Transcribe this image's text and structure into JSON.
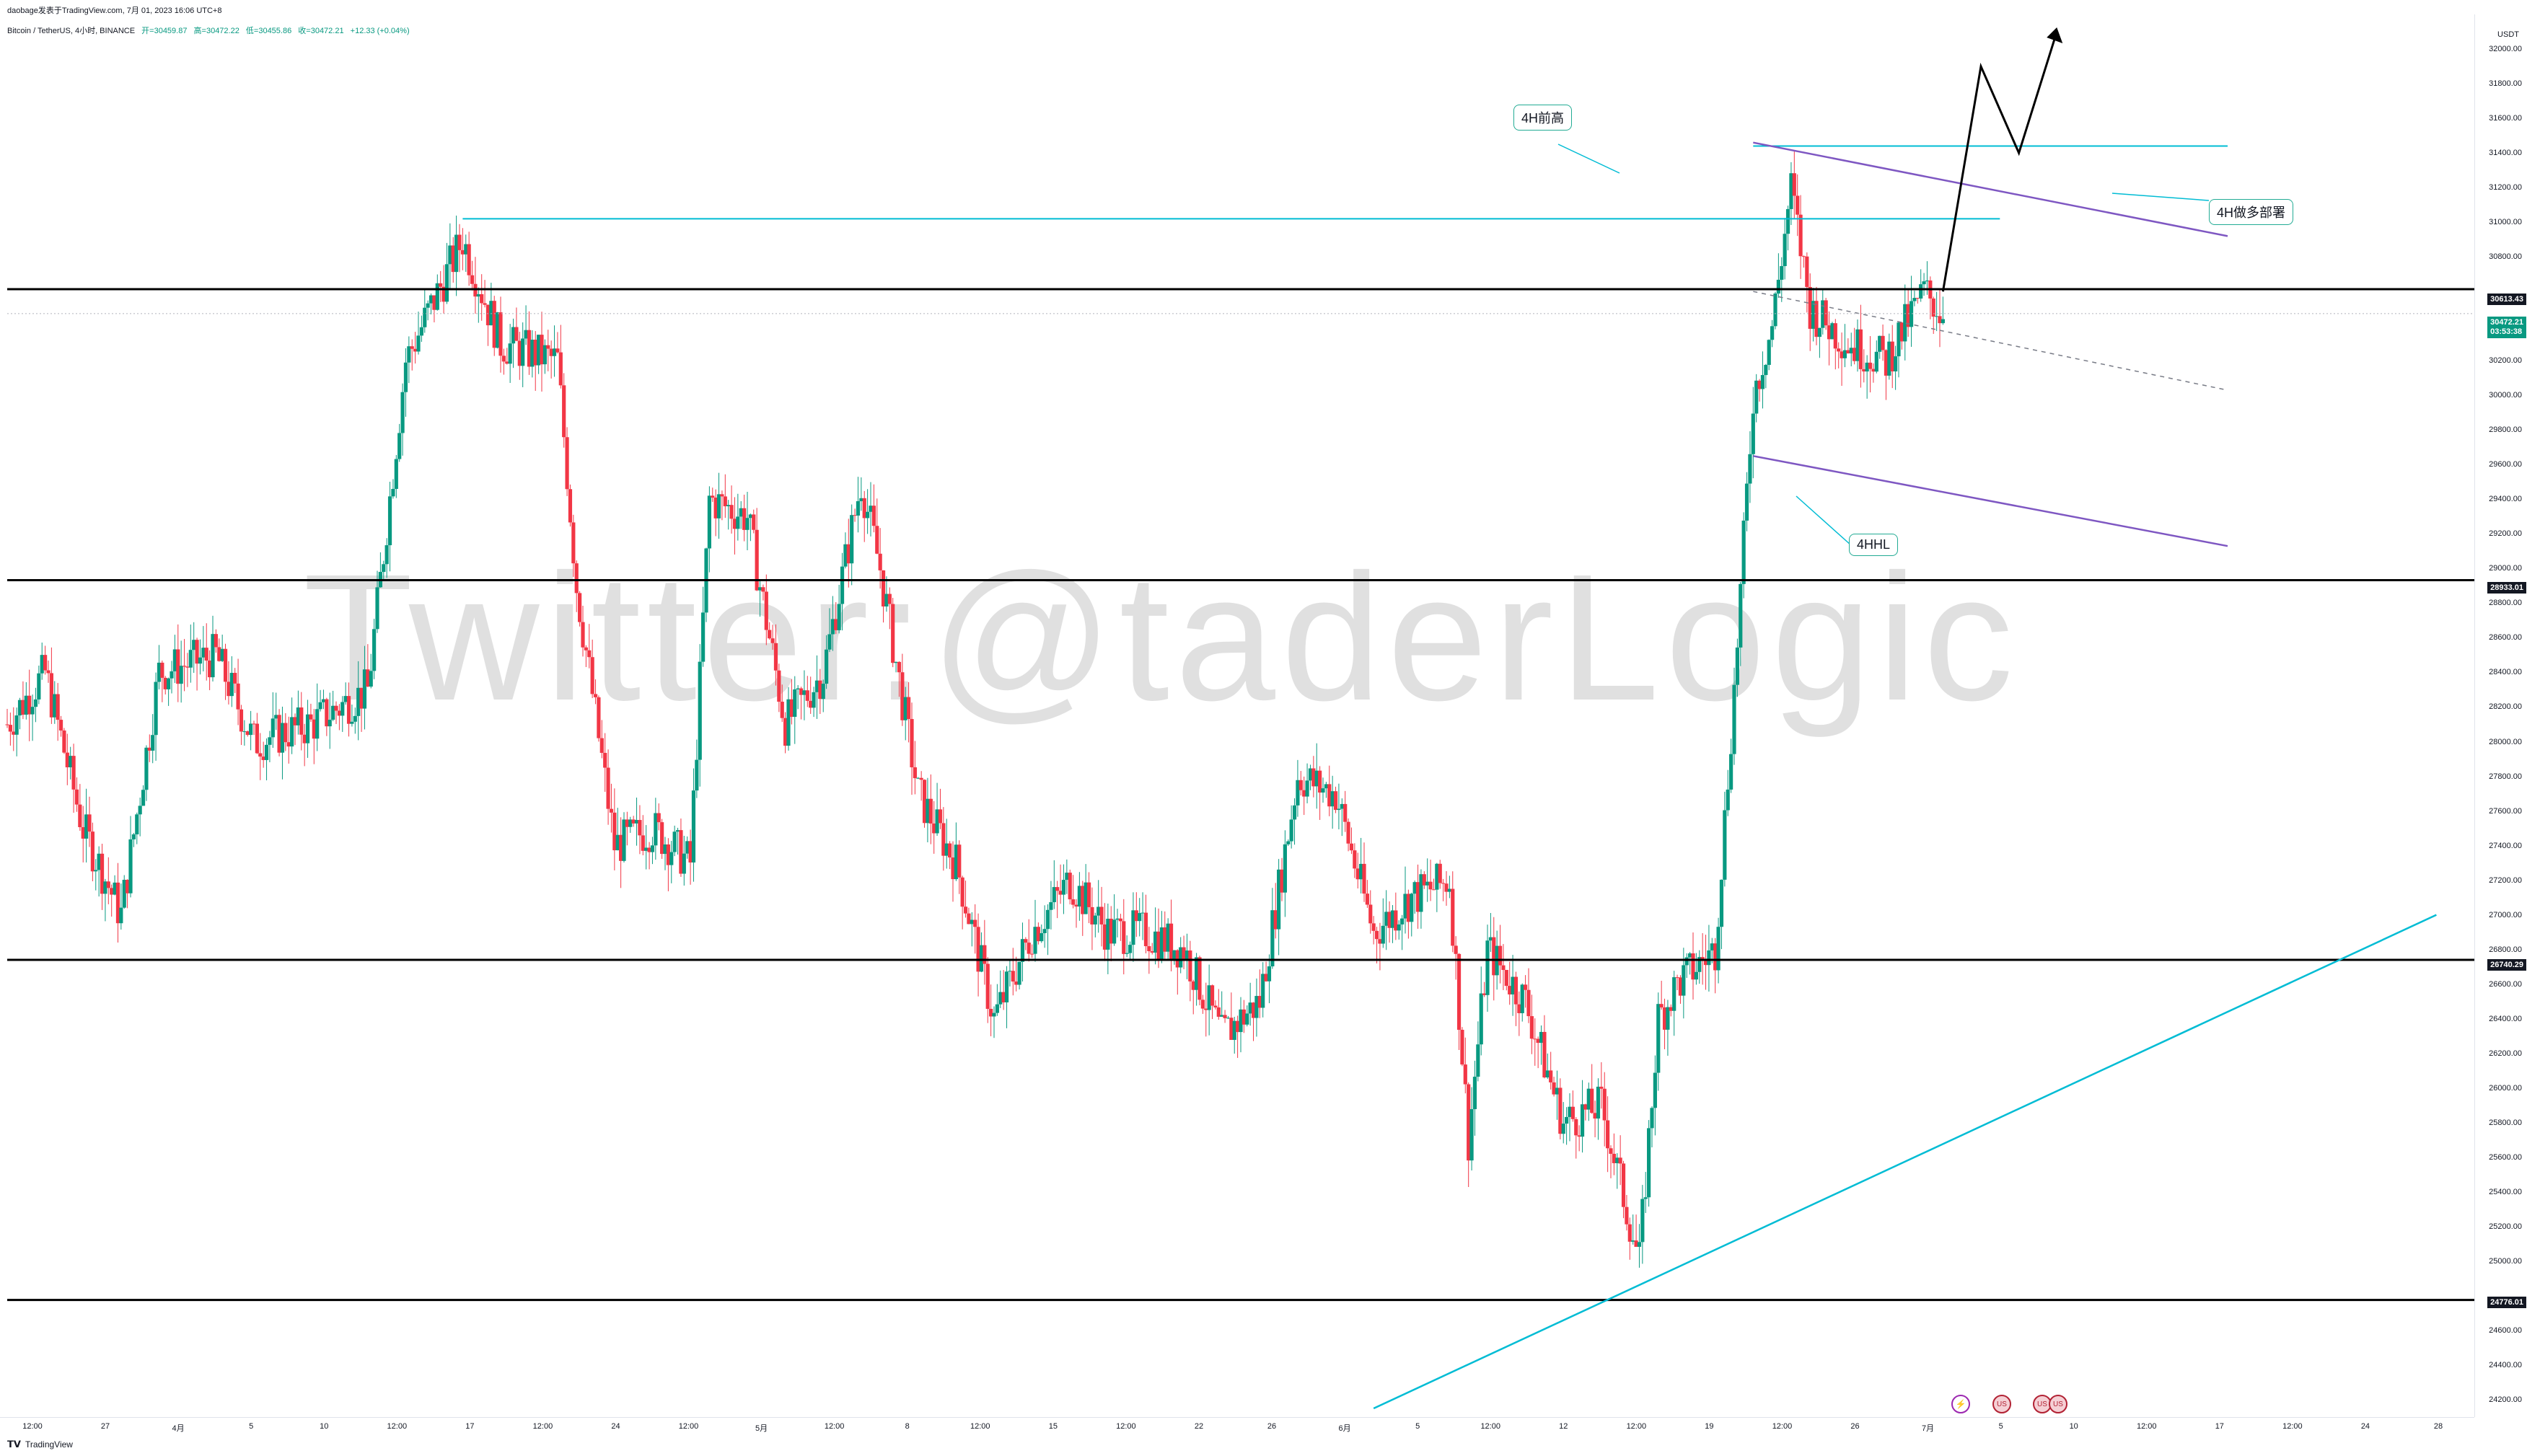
{
  "header": {
    "publisher": "daobage发表于TradingView.com,  7月 01, 2023 16:06 UTC+8"
  },
  "symbol": {
    "name": "Bitcoin / TetherUS, 4小时, BINANCE",
    "open": "开=30459.87",
    "high": "高=30472.22",
    "low": "低=30455.86",
    "close": "收=30472.21",
    "change": "+12.33 (+0.04%)"
  },
  "watermark": "Twitter:@taderLogic",
  "annotations": {
    "prev_high": "4H前高",
    "long_setup": "4H做多部署",
    "hhl": "4HHL"
  },
  "price_axis": {
    "unit": "USDT",
    "ticks": [
      "32000.00",
      "31800.00",
      "31600.00",
      "31400.00",
      "31200.00",
      "31000.00",
      "30800.00",
      "30200.00",
      "30000.00",
      "29800.00",
      "29600.00",
      "29400.00",
      "29200.00",
      "29000.00",
      "28800.00",
      "28600.00",
      "28400.00",
      "28200.00",
      "28000.00",
      "27800.00",
      "27600.00",
      "27400.00",
      "27200.00",
      "27000.00",
      "26800.00",
      "26600.00",
      "26400.00",
      "26200.00",
      "26000.00",
      "25800.00",
      "25600.00",
      "25400.00",
      "25200.00",
      "25000.00",
      "24600.00",
      "24400.00",
      "24200.00"
    ],
    "tags": {
      "level_a": "30613.43",
      "level_b": "28933.01",
      "level_c": "26740.29",
      "level_d": "24776.01",
      "last_price": "30472.21",
      "countdown": "03:53:38"
    }
  },
  "time_axis": {
    "ticks": [
      "12:00",
      "27",
      "4月",
      "5",
      "10",
      "12:00",
      "17",
      "12:00",
      "24",
      "12:00",
      "5月",
      "12:00",
      "8",
      "12:00",
      "15",
      "12:00",
      "22",
      "26",
      "6月",
      "5",
      "12:00",
      "12",
      "12:00",
      "19",
      "12:00",
      "26",
      "7月",
      "5",
      "10",
      "12:00",
      "17",
      "12:00",
      "24",
      "28"
    ]
  },
  "footer": {
    "brand": "TradingView"
  },
  "chart_data": {
    "type": "candlestick",
    "title": "Bitcoin / TetherUS, 4小时, BINANCE",
    "ylim": [
      24100,
      32200
    ],
    "x_range": [
      "2023-03-21",
      "2023-07-29"
    ],
    "grid": false,
    "colors": {
      "up": "#089981",
      "down": "#f23645",
      "horizontal": "#000000",
      "resistance": "#00bcd4",
      "channel": "#7e57c2",
      "projection": "#000000"
    },
    "key_levels": [
      30613.43,
      28933.01,
      26740.29,
      24776.01
    ],
    "resistance_levels": [
      {
        "value": 31020,
        "from": "2023-04-14",
        "to": "2023-07-04"
      },
      {
        "value": 31440,
        "from": "2023-06-21",
        "to": "2023-07-16"
      }
    ],
    "trendline": {
      "from": [
        "2023-06-01",
        24150
      ],
      "to": [
        "2023-07-27",
        27000
      ]
    },
    "price_path": [
      [
        "2023-03-21",
        28100
      ],
      [
        "2023-03-23",
        28400
      ],
      [
        "2023-03-25",
        27500
      ],
      [
        "2023-03-27",
        27000
      ],
      [
        "2023-03-29",
        28400
      ],
      [
        "2023-04-01",
        28500
      ],
      [
        "2023-04-03",
        28000
      ],
      [
        "2023-04-06",
        28100
      ],
      [
        "2023-04-09",
        28300
      ],
      [
        "2023-04-11",
        30200
      ],
      [
        "2023-04-14",
        30900
      ],
      [
        "2023-04-16",
        30300
      ],
      [
        "2023-04-19",
        30200
      ],
      [
        "2023-04-20",
        28900
      ],
      [
        "2023-04-22",
        27400
      ],
      [
        "2023-04-24",
        27500
      ],
      [
        "2023-04-26",
        27300
      ],
      [
        "2023-04-27",
        29400
      ],
      [
        "2023-04-29",
        29300
      ],
      [
        "2023-05-01",
        28100
      ],
      [
        "2023-05-03",
        28400
      ],
      [
        "2023-05-05",
        29500
      ],
      [
        "2023-05-06",
        29000
      ],
      [
        "2023-05-08",
        27700
      ],
      [
        "2023-05-10",
        27300
      ],
      [
        "2023-05-12",
        26400
      ],
      [
        "2023-05-14",
        26900
      ],
      [
        "2023-05-16",
        27200
      ],
      [
        "2023-05-18",
        26900
      ],
      [
        "2023-05-20",
        26900
      ],
      [
        "2023-05-22",
        26800
      ],
      [
        "2023-05-24",
        26300
      ],
      [
        "2023-05-26",
        26500
      ],
      [
        "2023-05-28",
        27800
      ],
      [
        "2023-05-30",
        27700
      ],
      [
        "2023-06-01",
        26900
      ],
      [
        "2023-06-03",
        27100
      ],
      [
        "2023-06-05",
        27200
      ],
      [
        "2023-06-06",
        25700
      ],
      [
        "2023-06-07",
        26800
      ],
      [
        "2023-06-09",
        26500
      ],
      [
        "2023-06-11",
        25800
      ],
      [
        "2023-06-13",
        25900
      ],
      [
        "2023-06-15",
        25000
      ],
      [
        "2023-06-16",
        26400
      ],
      [
        "2023-06-17",
        26600
      ],
      [
        "2023-06-19",
        26800
      ],
      [
        "2023-06-20",
        28300
      ],
      [
        "2023-06-21",
        30000
      ],
      [
        "2023-06-22",
        30400
      ],
      [
        "2023-06-23",
        31200
      ],
      [
        "2023-06-24",
        30500
      ],
      [
        "2023-06-26",
        30300
      ],
      [
        "2023-06-28",
        30200
      ],
      [
        "2023-06-29",
        30400
      ],
      [
        "2023-06-30",
        30600
      ],
      [
        "2023-07-01",
        30472
      ]
    ],
    "projection": [
      [
        "2023-07-01",
        30600
      ],
      [
        "2023-07-03",
        31900
      ],
      [
        "2023-07-05",
        31400
      ],
      [
        "2023-07-07",
        32100
      ]
    ]
  }
}
